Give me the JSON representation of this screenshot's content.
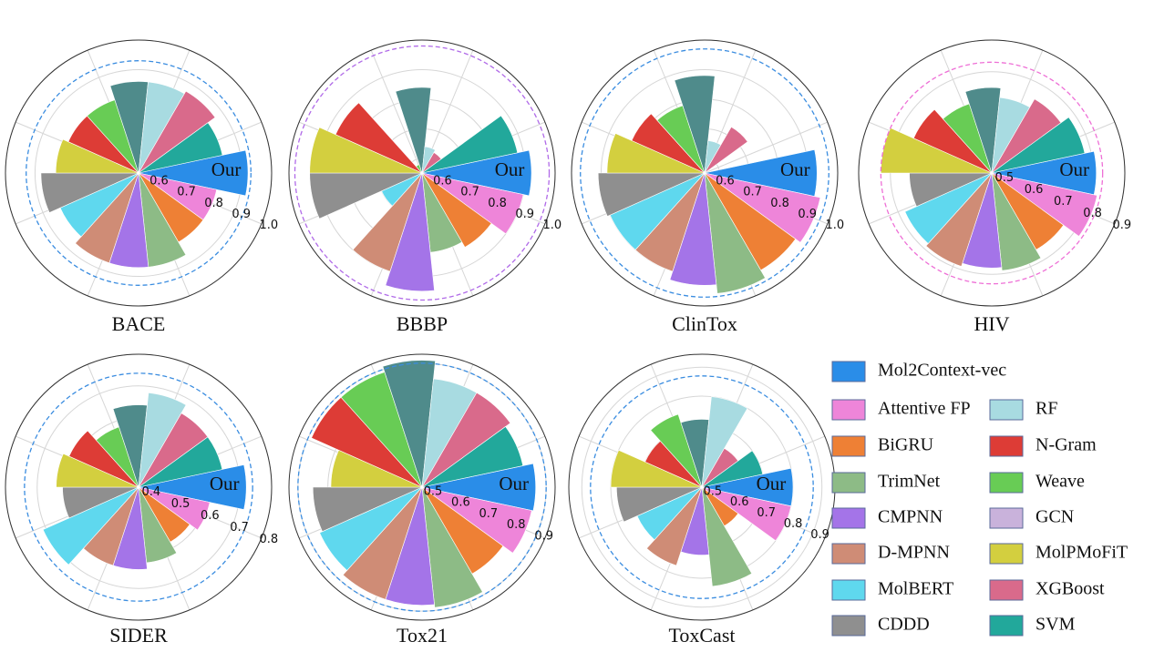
{
  "chart_data": {
    "type": "polar_bar",
    "annotation": "Our",
    "categories": [
      "Mol2Context-vec",
      "Attentive FP",
      "BiGRU",
      "TrimNet",
      "CMPNN",
      "D-MPNN",
      "MolBERT",
      "CDDD",
      "MolPMoFiT",
      "N-Gram",
      "Weave",
      "GCN",
      "RF",
      "XGBoost",
      "SVM"
    ],
    "colors": [
      "#2a8de8",
      "#ee85d9",
      "#ee8035",
      "#8dbb86",
      "#a474e8",
      "#cf8c76",
      "#5fd8ee",
      "#8f8f8f",
      "#d3cf3f",
      "#dd3c36",
      "#68cc55",
      "#4f8b8b",
      "#a8dbe1",
      "#d96a8b",
      "#22a89b"
    ],
    "legend_colors": [
      "#2a8de8",
      "#ee85d9",
      "#ee8035",
      "#8dbb86",
      "#a474e8",
      "#cf8c76",
      "#5fd8ee",
      "#8f8f8f",
      "#d3cf3f",
      "#dd3c36",
      "#68cc55",
      "#c9b2db",
      "#a8dbe1",
      "#d96a8b",
      "#22a89b"
    ],
    "legend": "lower right",
    "panels": [
      {
        "title": "BACE",
        "rlim": [
          0.55,
          1.0
        ],
        "rticks": [
          0.6,
          0.7,
          0.8,
          0.9,
          {
            "value": 1.0,
            "label": "1.0"
          }
        ],
        "values": [
          0.92,
          0.82,
          0.82,
          0.87,
          0.87,
          0.87,
          0.84,
          0.88,
          0.83,
          0.81,
          0.81,
          0.86,
          0.86,
          0.87,
          0.84
        ],
        "reference": {
          "value": 0.93,
          "color": "#3b8de0"
        }
      },
      {
        "title": "BBBP",
        "rlim": [
          0.55,
          1.0
        ],
        "rticks": [
          0.6,
          0.7,
          0.8,
          0.9,
          {
            "value": 1.0,
            "label": "1.0"
          }
        ],
        "values": [
          0.92,
          0.9,
          0.84,
          0.82,
          0.95,
          0.9,
          0.7,
          0.93,
          0.93,
          0.87,
          0.58,
          0.84,
          0.64,
          0.63,
          0.88
        ],
        "reference": {
          "value": 0.98,
          "color": "#b06ae8"
        }
      },
      {
        "title": "ClinTox",
        "rlim": [
          0.55,
          1.0
        ],
        "rticks": [
          0.6,
          0.7,
          0.8,
          0.9,
          {
            "value": 1.0,
            "label": "1.0"
          }
        ],
        "values": [
          0.93,
          0.95,
          0.93,
          0.96,
          0.93,
          0.9,
          0.9,
          0.91,
          0.88,
          0.82,
          0.79,
          0.88,
          0.66,
          0.73,
          0.56
        ],
        "reference": {
          "value": 0.97,
          "color": "#3b8de0"
        }
      },
      {
        "title": "HIV",
        "rlim": [
          0.48,
          0.9
        ],
        "rticks": [
          0.5,
          0.6,
          0.7,
          0.8,
          0.9
        ],
        "values": [
          0.81,
          0.82,
          0.76,
          0.79,
          0.78,
          0.79,
          0.78,
          0.74,
          0.83,
          0.75,
          0.71,
          0.75,
          0.72,
          0.75,
          0.78
        ],
        "reference": {
          "value": 0.83,
          "color": "#ee6fd6"
        }
      },
      {
        "title": "SIDER",
        "rlim": [
          0.38,
          0.8
        ],
        "rticks": [
          0.4,
          0.5,
          0.6,
          0.7,
          0.8
        ],
        "values": [
          0.72,
          0.61,
          0.58,
          0.62,
          0.64,
          0.64,
          0.71,
          0.62,
          0.64,
          0.62,
          0.58,
          0.64,
          0.68,
          0.65,
          0.65
        ],
        "reference": {
          "value": 0.74,
          "color": "#3b8de0"
        }
      },
      {
        "title": "Tox21",
        "rlim": [
          0.485,
          0.93
        ],
        "rticks": [
          0.5,
          0.6,
          0.7,
          0.8,
          0.9
        ],
        "values": [
          0.865,
          0.86,
          0.82,
          0.89,
          0.88,
          0.88,
          0.86,
          0.85,
          0.79,
          0.89,
          0.89,
          0.91,
          0.85,
          0.85,
          0.83
        ],
        "reference": {
          "value": 0.9,
          "color": "#3b8de0"
        }
      },
      {
        "title": "ToxCast",
        "rlim": [
          0.485,
          0.945
        ],
        "rticks": [
          0.5,
          0.6,
          0.7,
          0.8,
          0.9
        ],
        "values": [
          0.8,
          0.8,
          0.64,
          0.83,
          0.72,
          0.77,
          0.73,
          0.78,
          0.8,
          0.7,
          0.75,
          0.72,
          0.8,
          0.64,
          0.7
        ],
        "reference": {
          "value": 0.87,
          "color": "#3b8de0"
        }
      }
    ]
  }
}
